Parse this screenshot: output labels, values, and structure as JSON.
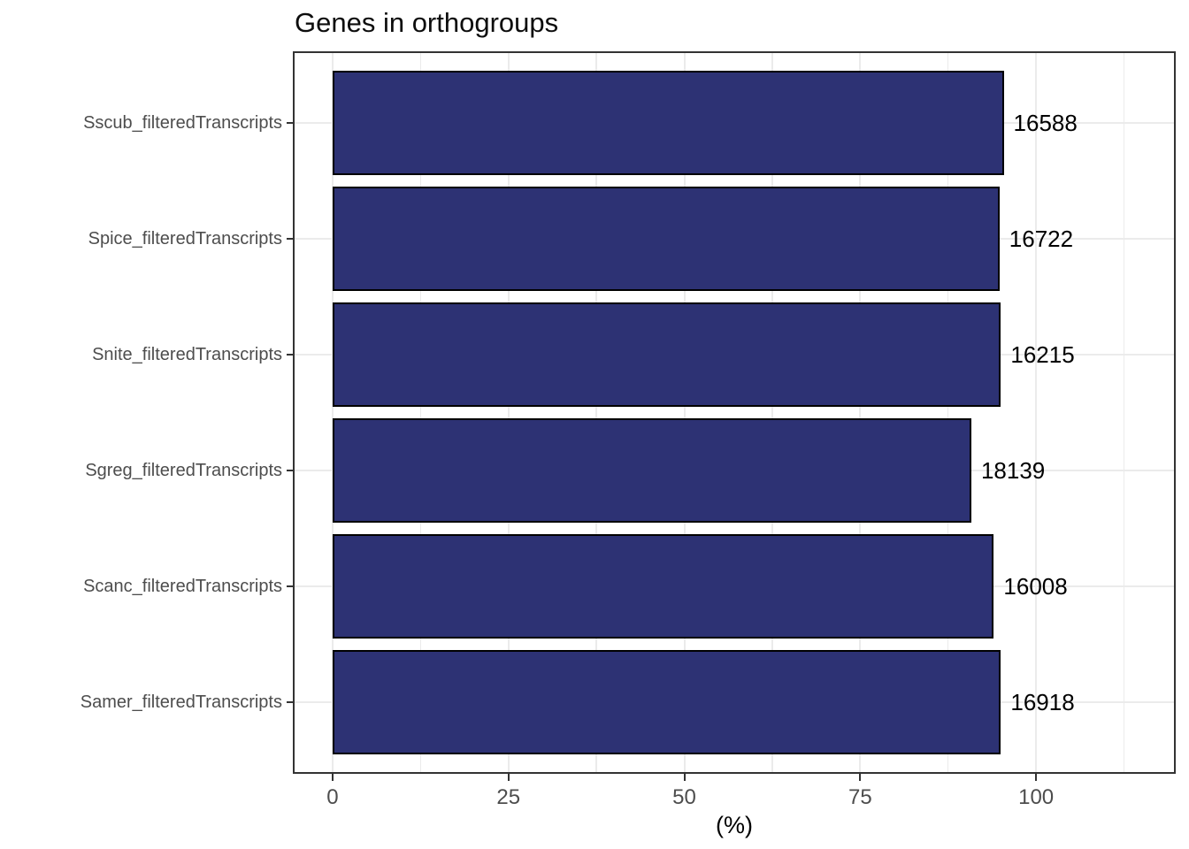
{
  "chart_data": {
    "type": "bar",
    "orientation": "horizontal",
    "title": "Genes in orthogroups",
    "xlabel": "(%)",
    "categories": [
      "Sscub_filteredTranscripts",
      "Spice_filteredTranscripts",
      "Snite_filteredTranscripts",
      "Sgreg_filteredTranscripts",
      "Scanc_filteredTranscripts",
      "Samer_filteredTranscripts"
    ],
    "values": [
      95.4,
      94.8,
      95.0,
      90.8,
      94.0,
      95.0
    ],
    "bar_labels": [
      "16588",
      "16722",
      "16215",
      "18139",
      "16008",
      "16918"
    ],
    "x_major_ticks": [
      0,
      25,
      50,
      75,
      100
    ],
    "x_minor_ticks": [
      12.5,
      37.5,
      62.5,
      87.5,
      112.5
    ],
    "xlim": [
      -5.4,
      119.6
    ],
    "ylim_units": [
      0.4,
      6.6
    ],
    "bar_height_units": 0.9,
    "grid": true,
    "legend": "none",
    "colors": {
      "bar_fill": "#2d3274",
      "bar_stroke": "#000000",
      "grid": "#ebebeb",
      "panel_border": "#333333",
      "axis_text": "#4d4d4d",
      "label_text": "#000000"
    }
  }
}
